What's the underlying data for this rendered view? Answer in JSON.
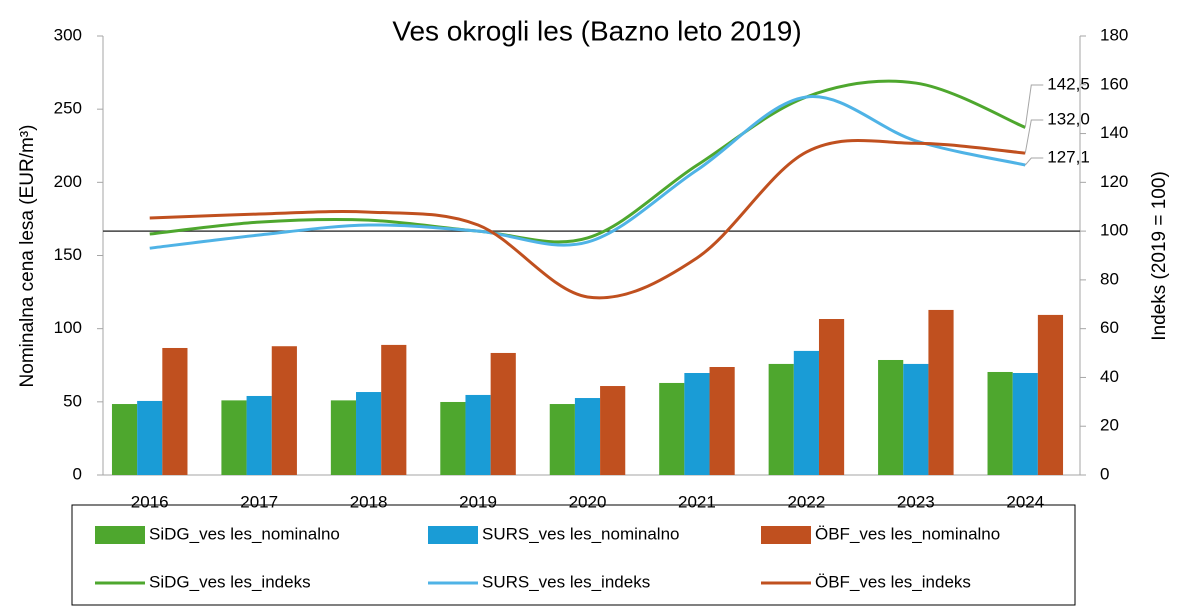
{
  "chart_data": {
    "type": "bar",
    "title": "Ves okrogli les (Bazno leto 2019)",
    "y_label": "Nominalna cena  lesa (EUR/m³)",
    "y2_label": "Indeks (2019 = 100)",
    "categories": [
      "2016",
      "2017",
      "2018",
      "2019",
      "2020",
      "2021",
      "2022",
      "2023",
      "2024"
    ],
    "ylim": [
      0,
      300
    ],
    "yticks": [
      0,
      50,
      100,
      150,
      200,
      250,
      300
    ],
    "y2lim": [
      0,
      180
    ],
    "y2ticks": [
      0,
      20,
      40,
      60,
      80,
      100,
      120,
      140,
      160,
      180
    ],
    "y2_reference_line": 100,
    "series": [
      {
        "name": "SiDG_ves les_nominalno",
        "type": "bar",
        "color": "#4ea72e",
        "values": [
          48.5,
          51,
          51,
          49.9,
          48.5,
          62.9,
          75.9,
          78.6,
          70.4
        ]
      },
      {
        "name": "SURS_ves les_nominalno",
        "type": "bar",
        "color": "#1a9cd6",
        "values": [
          50.6,
          54,
          56.7,
          54.7,
          52.6,
          69.7,
          84.8,
          75.9,
          69.7
        ]
      },
      {
        "name": "ÖBF_ves les_nominalno",
        "type": "bar",
        "color": "#c0501f",
        "values": [
          86.8,
          88,
          88.9,
          83.4,
          60.8,
          73.8,
          106.6,
          112.8,
          109.4
        ]
      },
      {
        "name": "SiDG_ves les_indeks",
        "type": "line",
        "axis": "y2",
        "color": "#4ea72e",
        "values": [
          98.8,
          103.7,
          104.5,
          100,
          97.2,
          127,
          155,
          160.7,
          142.5
        ],
        "value_labels": [
          null,
          null,
          null,
          null,
          null,
          null,
          null,
          null,
          "142,5"
        ]
      },
      {
        "name": "SURS_ves les_indeks",
        "type": "line",
        "axis": "y2",
        "color": "#4fb3e6",
        "values": [
          93,
          98.4,
          102.5,
          100,
          95.5,
          125,
          155,
          137,
          127.1
        ],
        "value_labels": [
          null,
          null,
          null,
          null,
          null,
          null,
          null,
          null,
          "127,1"
        ]
      },
      {
        "name": "ÖBF_ves les_indeks",
        "type": "line",
        "axis": "y2",
        "color": "#c0501f",
        "values": [
          105.4,
          107,
          107.8,
          102.5,
          73,
          89,
          132.4,
          136,
          132.0
        ],
        "value_labels": [
          null,
          null,
          null,
          null,
          null,
          null,
          null,
          null,
          "132,0"
        ]
      }
    ]
  }
}
